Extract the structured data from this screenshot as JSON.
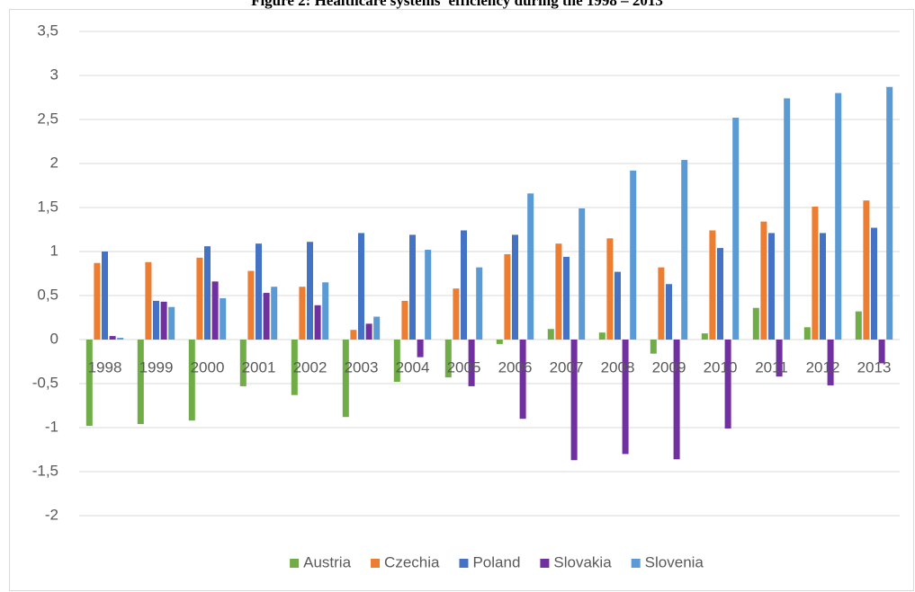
{
  "chart_data": {
    "type": "bar",
    "title": "Figure 2: Healthcare systems' efficiency during the 1998 – 2013",
    "categories": [
      "1998",
      "1999",
      "2000",
      "2001",
      "2002",
      "2003",
      "2004",
      "2005",
      "2006",
      "2007",
      "2008",
      "2009",
      "2010",
      "2011",
      "2012",
      "2013"
    ],
    "series": [
      {
        "name": "Austria",
        "color": "#70ad47",
        "values": [
          -0.98,
          -0.96,
          -0.92,
          -0.53,
          -0.63,
          -0.88,
          -0.48,
          -0.43,
          -0.05,
          0.12,
          0.08,
          -0.16,
          0.07,
          0.36,
          0.14,
          0.32
        ]
      },
      {
        "name": "Czechia",
        "color": "#ed7d31",
        "values": [
          0.87,
          0.88,
          0.93,
          0.78,
          0.6,
          0.11,
          0.44,
          0.58,
          0.97,
          1.09,
          1.15,
          0.82,
          1.24,
          1.34,
          1.51,
          1.58
        ]
      },
      {
        "name": "Poland",
        "color": "#4472c4",
        "values": [
          1.0,
          0.44,
          1.06,
          1.09,
          1.11,
          1.21,
          1.19,
          1.24,
          1.19,
          0.94,
          0.77,
          0.63,
          1.04,
          1.21,
          1.21,
          1.27
        ]
      },
      {
        "name": "Slovakia",
        "color": "#7030a0",
        "values": [
          0.04,
          0.43,
          0.66,
          0.53,
          0.39,
          0.18,
          -0.2,
          -0.53,
          -0.9,
          -1.37,
          -1.3,
          -1.36,
          -1.01,
          -0.42,
          -0.52,
          -0.27
        ]
      },
      {
        "name": "Slovenia",
        "color": "#5b9bd5",
        "values": [
          0.02,
          0.37,
          0.47,
          0.6,
          0.65,
          0.26,
          1.02,
          0.82,
          1.66,
          1.49,
          1.92,
          2.04,
          2.52,
          2.74,
          2.8,
          2.87
        ]
      }
    ],
    "ylim": [
      -2,
      3.5
    ],
    "yticks": [
      -2,
      {
        "value": -1.5,
        "label": "-1,5"
      },
      -1,
      {
        "value": -0.5,
        "label": "-0,5"
      },
      0,
      {
        "value": 0.5,
        "label": "0,5"
      },
      1,
      {
        "value": 1.5,
        "label": "1,5"
      },
      2,
      {
        "value": 2.5,
        "label": "2,5"
      },
      3,
      {
        "value": 3.5,
        "label": "3,5"
      }
    ],
    "grid": true,
    "legend": "bottom"
  }
}
